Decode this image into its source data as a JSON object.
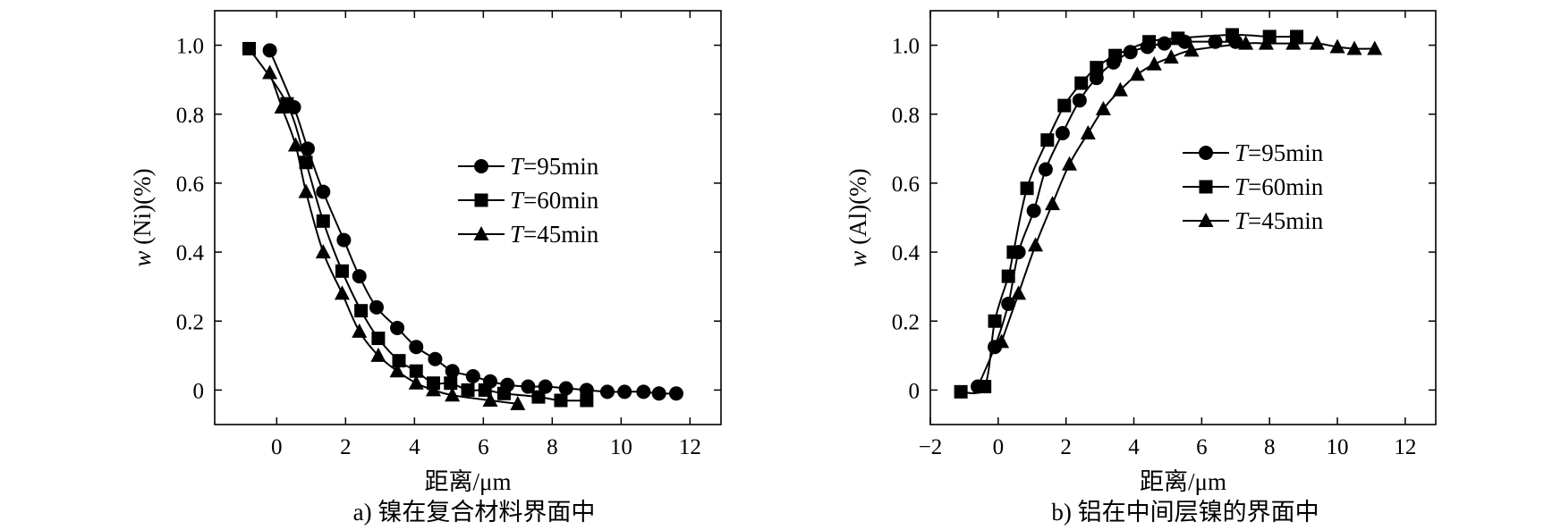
{
  "figure": {
    "background": "#ffffff",
    "ink_color": "#000000"
  },
  "chart_data": [
    {
      "type": "line",
      "caption": "a) 镍在复合材料界面中",
      "xlabel": "距离/μm",
      "ylabel_var": "w",
      "ylabel_rest": " (Ni)(%)",
      "xlim": [
        -1.8,
        12.9
      ],
      "ylim": [
        -0.1,
        1.1
      ],
      "xticks": [
        "0",
        "2",
        "4",
        "6",
        "8",
        "10",
        "12"
      ],
      "yticks": [
        "0",
        "0.2",
        "0.4",
        "0.6",
        "0.8",
        "1.0"
      ],
      "legend_position": "right-middle",
      "series": [
        {
          "name": "T=95min",
          "name_var": "T",
          "name_rest": "=95min",
          "marker": "circle",
          "x": [
            -0.2,
            0.5,
            0.9,
            1.35,
            1.95,
            2.4,
            2.9,
            3.5,
            4.05,
            4.6,
            5.1,
            5.7,
            6.2,
            6.7,
            7.3,
            7.8,
            8.4,
            9.0,
            9.6,
            10.1,
            10.65,
            11.1,
            11.6
          ],
          "y": [
            0.985,
            0.82,
            0.7,
            0.575,
            0.435,
            0.33,
            0.24,
            0.18,
            0.125,
            0.09,
            0.055,
            0.04,
            0.025,
            0.015,
            0.01,
            0.01,
            0.005,
            0.0,
            -0.005,
            -0.005,
            -0.005,
            -0.01,
            -0.01
          ]
        },
        {
          "name": "T=60min",
          "name_var": "T",
          "name_rest": "=60min",
          "marker": "square",
          "x": [
            -0.8,
            0.3,
            0.85,
            1.35,
            1.9,
            2.45,
            2.95,
            3.55,
            4.05,
            4.55,
            5.05,
            5.55,
            6.05,
            6.6,
            7.6,
            8.25,
            9.0
          ],
          "y": [
            0.99,
            0.83,
            0.66,
            0.49,
            0.345,
            0.23,
            0.15,
            0.085,
            0.055,
            0.02,
            0.02,
            0.0,
            0.0,
            -0.01,
            -0.02,
            -0.03,
            -0.03
          ]
        },
        {
          "name": "T=45min",
          "name_var": "T",
          "name_rest": "=45min",
          "marker": "triangle",
          "x": [
            -0.2,
            0.15,
            0.55,
            0.85,
            1.35,
            1.9,
            2.4,
            2.95,
            3.5,
            4.05,
            4.55,
            5.1,
            6.2,
            7.0
          ],
          "y": [
            0.92,
            0.82,
            0.71,
            0.575,
            0.4,
            0.28,
            0.17,
            0.1,
            0.055,
            0.02,
            0.0,
            -0.015,
            -0.03,
            -0.04
          ]
        }
      ]
    },
    {
      "type": "line",
      "caption": "b) 铝在中间层镍的界面中",
      "xlabel": "距离/μm",
      "ylabel_var": "w",
      "ylabel_rest": " (Al)(%)",
      "xlim": [
        -2.0,
        12.9
      ],
      "ylim": [
        -0.1,
        1.1
      ],
      "xticks": [
        "−2",
        "0",
        "2",
        "4",
        "6",
        "8",
        "10",
        "12"
      ],
      "yticks": [
        "0",
        "0.2",
        "0.4",
        "0.6",
        "0.8",
        "1.0"
      ],
      "legend_position": "right-middle",
      "series": [
        {
          "name": "T=95min",
          "name_var": "T",
          "name_rest": "=95min",
          "marker": "circle",
          "x": [
            -0.6,
            -0.1,
            0.3,
            0.6,
            1.05,
            1.4,
            1.9,
            2.4,
            2.9,
            3.4,
            3.9,
            4.4,
            4.9,
            5.5,
            6.4,
            7.0
          ],
          "y": [
            0.01,
            0.125,
            0.25,
            0.4,
            0.52,
            0.64,
            0.745,
            0.84,
            0.905,
            0.95,
            0.98,
            0.995,
            1.005,
            1.01,
            1.01,
            1.01
          ]
        },
        {
          "name": "T=60min",
          "name_var": "T",
          "name_rest": "=60min",
          "marker": "square",
          "x": [
            -1.1,
            -0.4,
            -0.1,
            0.3,
            0.45,
            0.85,
            1.45,
            1.95,
            2.45,
            2.9,
            3.45,
            4.45,
            5.3,
            6.9,
            8.0,
            8.8
          ],
          "y": [
            -0.005,
            0.01,
            0.2,
            0.33,
            0.4,
            0.585,
            0.725,
            0.825,
            0.89,
            0.935,
            0.97,
            1.01,
            1.02,
            1.03,
            1.025,
            1.025
          ]
        },
        {
          "name": "T=45min",
          "name_var": "T",
          "name_rest": "=45min",
          "marker": "triangle",
          "x": [
            0.1,
            0.6,
            1.1,
            1.6,
            2.1,
            2.65,
            3.1,
            3.6,
            4.1,
            4.6,
            5.1,
            5.7,
            7.3,
            7.9,
            8.7,
            9.4,
            10.0,
            10.5,
            11.1
          ],
          "y": [
            0.14,
            0.28,
            0.42,
            0.54,
            0.655,
            0.745,
            0.815,
            0.87,
            0.915,
            0.945,
            0.965,
            0.985,
            1.005,
            1.005,
            1.005,
            1.005,
            0.995,
            0.99,
            0.99
          ]
        }
      ]
    }
  ]
}
